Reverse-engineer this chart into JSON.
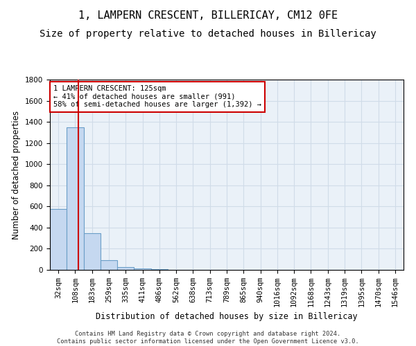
{
  "title": "1, LAMPERN CRESCENT, BILLERICAY, CM12 0FE",
  "subtitle": "Size of property relative to detached houses in Billericay",
  "xlabel": "Distribution of detached houses by size in Billericay",
  "ylabel": "Number of detached properties",
  "footer_line1": "Contains HM Land Registry data © Crown copyright and database right 2024.",
  "footer_line2": "Contains public sector information licensed under the Open Government Licence v3.0.",
  "bin_labels": [
    "32sqm",
    "108sqm",
    "183sqm",
    "259sqm",
    "335sqm",
    "411sqm",
    "486sqm",
    "562sqm",
    "638sqm",
    "713sqm",
    "789sqm",
    "865sqm",
    "940sqm",
    "1016sqm",
    "1092sqm",
    "1168sqm",
    "1243sqm",
    "1319sqm",
    "1395sqm",
    "1470sqm",
    "1546sqm"
  ],
  "bar_values": [
    575,
    1350,
    350,
    90,
    25,
    15,
    5,
    0,
    0,
    0,
    0,
    0,
    0,
    0,
    0,
    0,
    0,
    0,
    0,
    0,
    0
  ],
  "bar_color": "#c5d8f0",
  "bar_edge_color": "#6a9ec8",
  "property_line_x": 1.17,
  "property_line_color": "#cc0000",
  "annotation_text": "1 LAMPERN CRESCENT: 125sqm\n← 41% of detached houses are smaller (991)\n58% of semi-detached houses are larger (1,392) →",
  "annotation_box_color": "#cc0000",
  "ylim": [
    0,
    1800
  ],
  "yticks": [
    0,
    200,
    400,
    600,
    800,
    1000,
    1200,
    1400,
    1600,
    1800
  ],
  "grid_color": "#d0dce8",
  "background_color": "#eaf1f8",
  "title_fontsize": 11,
  "subtitle_fontsize": 10,
  "axis_label_fontsize": 8.5,
  "tick_fontsize": 7.5,
  "annotation_fontsize": 7.5
}
